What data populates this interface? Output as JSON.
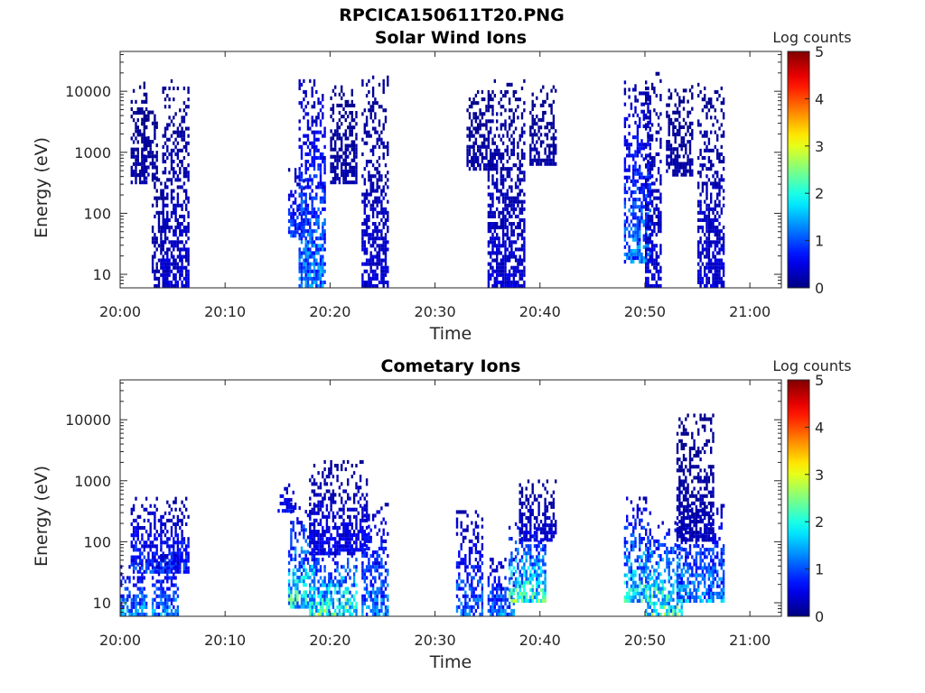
{
  "figure": {
    "title": "RPCICA150611T20.PNG"
  },
  "chart_data": [
    {
      "type": "heatmap",
      "title": "Solar Wind Ions",
      "xlabel": "Time",
      "ylabel": "Energy (eV)",
      "x_ticks": [
        "20:00",
        "20:10",
        "20:20",
        "20:30",
        "20:40",
        "20:50",
        "21:00"
      ],
      "xlim": [
        "20:00",
        "21:03"
      ],
      "y_scale": "log",
      "y_ticks": [
        "10",
        "100",
        "1000",
        "10000"
      ],
      "ylim": [
        6,
        45000
      ],
      "colorbar": {
        "label": "Log counts",
        "ticks": [
          "0",
          "1",
          "2",
          "3",
          "4",
          "5"
        ],
        "range": [
          0,
          5
        ],
        "colormap": "jet"
      },
      "clusters": [
        {
          "t_start": "20:01",
          "t_end": "20:02",
          "e_min": 300,
          "e_max": 14000,
          "level_max": 0.3
        },
        {
          "t_start": "20:02",
          "t_end": "20:03",
          "e_min": 350,
          "e_max": 5000,
          "level_max": 0.3
        },
        {
          "t_start": "20:03",
          "t_end": "20:04",
          "e_min": 6,
          "e_max": 500,
          "level_max": 0.4
        },
        {
          "t_start": "20:04",
          "t_end": "20:06",
          "e_min": 6,
          "e_max": 14000,
          "level_max": 0.6
        },
        {
          "t_start": "20:16",
          "t_end": "20:17",
          "e_min": 40,
          "e_max": 500,
          "level_max": 1.3
        },
        {
          "t_start": "20:17",
          "t_end": "20:19",
          "e_min": 6,
          "e_max": 14000,
          "level_max": 1.8
        },
        {
          "t_start": "20:20",
          "t_end": "20:22",
          "e_min": 300,
          "e_max": 14000,
          "level_max": 0.3
        },
        {
          "t_start": "20:23",
          "t_end": "20:25",
          "e_min": 6,
          "e_max": 17000,
          "level_max": 0.6
        },
        {
          "t_start": "20:33",
          "t_end": "20:35",
          "e_min": 500,
          "e_max": 10000,
          "level_max": 0.3
        },
        {
          "t_start": "20:35",
          "t_end": "20:38",
          "e_min": 6,
          "e_max": 14000,
          "level_max": 0.6
        },
        {
          "t_start": "20:39",
          "t_end": "20:41",
          "e_min": 600,
          "e_max": 12000,
          "level_max": 0.3
        },
        {
          "t_start": "20:48",
          "t_end": "20:50",
          "e_min": 15,
          "e_max": 14000,
          "level_max": 1.7
        },
        {
          "t_start": "20:50",
          "t_end": "20:51",
          "e_min": 6,
          "e_max": 20000,
          "level_max": 0.6
        },
        {
          "t_start": "20:52",
          "t_end": "20:54",
          "e_min": 400,
          "e_max": 12000,
          "level_max": 0.3
        },
        {
          "t_start": "20:55",
          "t_end": "20:57",
          "e_min": 6,
          "e_max": 12000,
          "level_max": 0.6
        }
      ]
    },
    {
      "type": "heatmap",
      "title": "Cometary Ions",
      "xlabel": "Time",
      "ylabel": "Energy (eV)",
      "x_ticks": [
        "20:00",
        "20:10",
        "20:20",
        "20:30",
        "20:40",
        "20:50",
        "21:00"
      ],
      "xlim": [
        "20:00",
        "21:03"
      ],
      "y_scale": "log",
      "y_ticks": [
        "10",
        "100",
        "1000",
        "10000"
      ],
      "ylim": [
        6,
        45000
      ],
      "colorbar": {
        "label": "Log counts",
        "ticks": [
          "0",
          "1",
          "2",
          "3",
          "4",
          "5"
        ],
        "range": [
          0,
          5
        ],
        "colormap": "jet"
      },
      "clusters": [
        {
          "t_start": "20:00",
          "t_end": "20:02",
          "e_min": 6,
          "e_max": 45,
          "level_max": 2.0
        },
        {
          "t_start": "20:01",
          "t_end": "20:06",
          "e_min": 30,
          "e_max": 500,
          "level_max": 1.2
        },
        {
          "t_start": "20:03",
          "t_end": "20:05",
          "e_min": 6,
          "e_max": 60,
          "level_max": 1.8
        },
        {
          "t_start": "20:15",
          "t_end": "20:16",
          "e_min": 300,
          "e_max": 1000,
          "level_max": 1.0
        },
        {
          "t_start": "20:16",
          "t_end": "20:18",
          "e_min": 8,
          "e_max": 400,
          "level_max": 2.8
        },
        {
          "t_start": "20:18",
          "t_end": "20:22",
          "e_min": 6,
          "e_max": 80,
          "level_max": 3.0
        },
        {
          "t_start": "20:18",
          "t_end": "20:23",
          "e_min": 60,
          "e_max": 2000,
          "level_max": 0.8
        },
        {
          "t_start": "20:23",
          "t_end": "20:25",
          "e_min": 6,
          "e_max": 400,
          "level_max": 1.8
        },
        {
          "t_start": "20:32",
          "t_end": "20:34",
          "e_min": 6,
          "e_max": 300,
          "level_max": 1.6
        },
        {
          "t_start": "20:35",
          "t_end": "20:37",
          "e_min": 6,
          "e_max": 50,
          "level_max": 1.8
        },
        {
          "t_start": "20:37",
          "t_end": "20:40",
          "e_min": 10,
          "e_max": 200,
          "level_max": 3.0
        },
        {
          "t_start": "20:38",
          "t_end": "20:41",
          "e_min": 100,
          "e_max": 1000,
          "level_max": 0.6
        },
        {
          "t_start": "20:48",
          "t_end": "20:50",
          "e_min": 10,
          "e_max": 500,
          "level_max": 2.6
        },
        {
          "t_start": "20:50",
          "t_end": "20:53",
          "e_min": 6,
          "e_max": 200,
          "level_max": 3.0
        },
        {
          "t_start": "20:53",
          "t_end": "20:57",
          "e_min": 10,
          "e_max": 400,
          "level_max": 1.9
        },
        {
          "t_start": "20:53",
          "t_end": "20:56",
          "e_min": 100,
          "e_max": 12000,
          "level_max": 0.4
        }
      ]
    }
  ]
}
